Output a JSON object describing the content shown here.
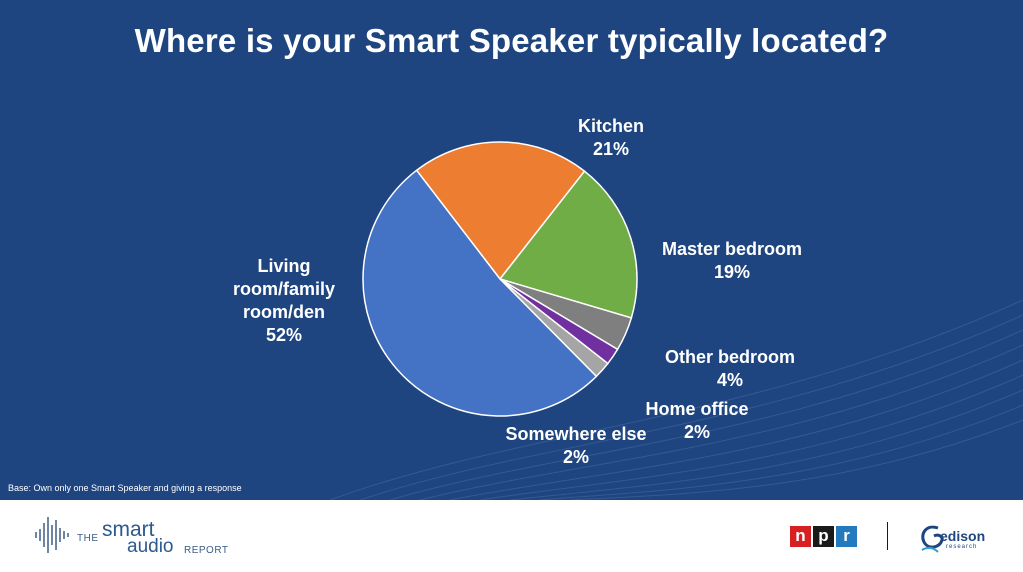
{
  "chart_data": {
    "type": "pie",
    "title": "Where is your Smart Speaker typically located?",
    "slices": [
      {
        "label": "Kitchen",
        "percent_label": "21%",
        "value": 21,
        "color": "#ed7d31"
      },
      {
        "label": "Master bedroom",
        "percent_label": "19%",
        "value": 19,
        "color": "#70ad47"
      },
      {
        "label": "Other bedroom",
        "percent_label": "4%",
        "value": 4,
        "color": "#7f7f7f"
      },
      {
        "label": "Home office",
        "percent_label": "2%",
        "value": 2,
        "color": "#7030a0"
      },
      {
        "label": "Somewhere else",
        "percent_label": "2%",
        "value": 2,
        "color": "#a5a5a5"
      },
      {
        "label": [
          "Living",
          "room/family",
          "room/den"
        ],
        "percent_label": "52%",
        "value": 52,
        "color": "#4472c4"
      }
    ]
  },
  "note": "Base: Own only one Smart Speaker and giving a response",
  "footer": {
    "smart_logo": {
      "the": "THE",
      "smart": "smart",
      "audio": "audio",
      "report": "REPORT"
    },
    "npr_logo": [
      "n",
      "p",
      "r"
    ],
    "edison_logo": {
      "name": "edison",
      "sub": "research"
    }
  },
  "colors": {
    "background": "#1f4580",
    "text": "#ffffff"
  }
}
